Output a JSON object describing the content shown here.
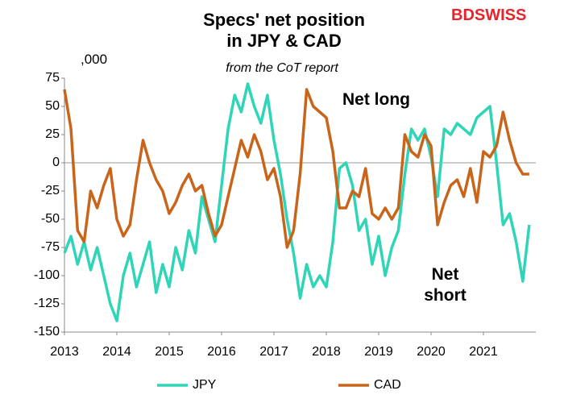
{
  "chart_data": {
    "type": "line",
    "title": "Specs' net position in JPY & CAD",
    "subtitle": "from the CoT report",
    "y_unit_label": ",000",
    "logo": "BDSWISS",
    "annotations": [
      "Net long",
      "Net short"
    ],
    "x": [
      2013.0,
      2013.125,
      2013.25,
      2013.375,
      2013.5,
      2013.625,
      2013.75,
      2013.875,
      2014.0,
      2014.125,
      2014.25,
      2014.375,
      2014.5,
      2014.625,
      2014.75,
      2014.875,
      2015.0,
      2015.125,
      2015.25,
      2015.375,
      2015.5,
      2015.625,
      2015.75,
      2015.875,
      2016.0,
      2016.125,
      2016.25,
      2016.375,
      2016.5,
      2016.625,
      2016.75,
      2016.875,
      2017.0,
      2017.125,
      2017.25,
      2017.375,
      2017.5,
      2017.625,
      2017.75,
      2017.875,
      2018.0,
      2018.125,
      2018.25,
      2018.375,
      2018.5,
      2018.625,
      2018.75,
      2018.875,
      2019.0,
      2019.125,
      2019.25,
      2019.375,
      2019.5,
      2019.625,
      2019.75,
      2019.875,
      2020.0,
      2020.125,
      2020.25,
      2020.375,
      2020.5,
      2020.625,
      2020.75,
      2020.875,
      2021.0,
      2021.125,
      2021.25,
      2021.375,
      2021.5,
      2021.625,
      2021.75,
      2021.875
    ],
    "series": [
      {
        "name": "JPY",
        "color": "#2fd5b6",
        "values": [
          -80,
          -65,
          -90,
          -70,
          -95,
          -75,
          -100,
          -125,
          -140,
          -100,
          -80,
          -110,
          -90,
          -70,
          -115,
          -90,
          -110,
          -75,
          -95,
          -60,
          -80,
          -30,
          -50,
          -70,
          -20,
          30,
          60,
          45,
          70,
          50,
          35,
          60,
          20,
          -10,
          -50,
          -80,
          -120,
          -90,
          -110,
          -100,
          -110,
          -70,
          -5,
          0,
          -20,
          -60,
          -50,
          -90,
          -65,
          -100,
          -75,
          -60,
          -10,
          30,
          20,
          30,
          5,
          -30,
          30,
          25,
          35,
          30,
          25,
          40,
          45,
          50,
          0,
          -55,
          -45,
          -70,
          -105,
          -55
        ]
      },
      {
        "name": "CAD",
        "color": "#c8651b",
        "values": [
          65,
          30,
          -60,
          -70,
          -25,
          -40,
          -20,
          -5,
          -50,
          -65,
          -55,
          -15,
          20,
          0,
          -15,
          -25,
          -45,
          -35,
          -20,
          -10,
          -25,
          -20,
          -45,
          -65,
          -55,
          -30,
          -5,
          20,
          5,
          25,
          10,
          -15,
          -5,
          -30,
          -75,
          -60,
          -10,
          65,
          50,
          45,
          40,
          10,
          -40,
          -40,
          -25,
          -30,
          -5,
          -45,
          -50,
          -40,
          -50,
          -40,
          25,
          10,
          5,
          25,
          15,
          -55,
          -35,
          -20,
          -15,
          -30,
          -5,
          -35,
          10,
          5,
          15,
          45,
          20,
          0,
          -10,
          -10
        ]
      }
    ],
    "xlim": [
      2013,
      2022
    ],
    "xticks": [
      2013,
      2014,
      2015,
      2016,
      2017,
      2018,
      2019,
      2020,
      2021
    ],
    "ylim": [
      -150,
      75
    ],
    "yticks": [
      75,
      50,
      25,
      0,
      -25,
      -50,
      -75,
      -100,
      -125,
      -150
    ]
  }
}
